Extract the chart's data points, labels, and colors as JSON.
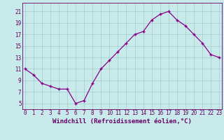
{
  "x": [
    0,
    1,
    2,
    3,
    4,
    5,
    6,
    7,
    8,
    9,
    10,
    11,
    12,
    13,
    14,
    15,
    16,
    17,
    18,
    19,
    20,
    21,
    22,
    23
  ],
  "y": [
    11,
    10,
    8.5,
    8,
    7.5,
    7.5,
    5,
    5.5,
    8.5,
    11,
    12.5,
    14,
    15.5,
    17,
    17.5,
    19.5,
    20.5,
    21,
    19.5,
    18.5,
    17,
    15.5,
    13.5,
    13
  ],
  "line_color": "#880088",
  "marker": "+",
  "bg_color": "#c8eaea",
  "grid_color": "#a0cccc",
  "title": "Windchill (Refroidissement éolien,°C)",
  "yticks": [
    5,
    7,
    9,
    11,
    13,
    15,
    17,
    19,
    21
  ],
  "xticks": [
    0,
    1,
    2,
    3,
    4,
    5,
    6,
    7,
    8,
    9,
    10,
    11,
    12,
    13,
    14,
    15,
    16,
    17,
    18,
    19,
    20,
    21,
    22,
    23
  ],
  "xlim": [
    -0.3,
    23.3
  ],
  "ylim": [
    4,
    22.5
  ],
  "tick_fontsize": 5.5,
  "xlabel_fontsize": 6.5,
  "axis_color": "#660066",
  "markersize": 3.5,
  "linewidth": 0.9
}
